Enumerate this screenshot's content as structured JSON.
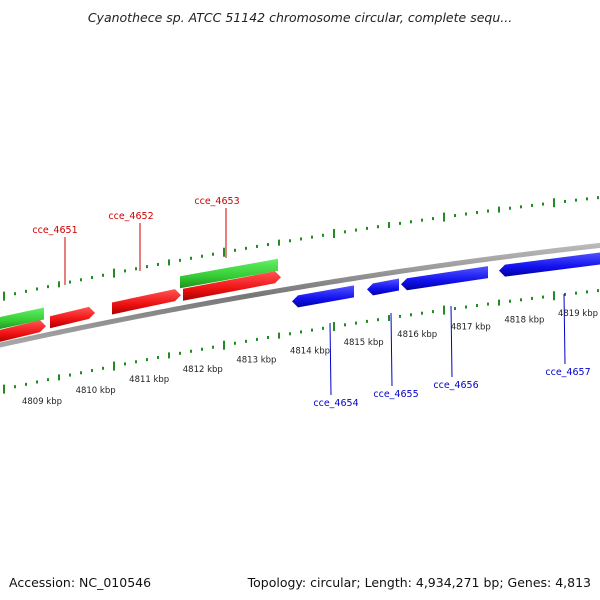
{
  "title": "Cyanothece sp. ATCC 51142 chromosome circular, complete sequ...",
  "footer": {
    "accession": "Accession: NC_010546",
    "stats": "Topology: circular; Length: 4,934,271 bp; Genes: 4,813"
  },
  "colors": {
    "forward_top": "#33cc33",
    "forward_bottom": "#ee1111",
    "reverse": "#1111ee",
    "tick_forward": "#228b22",
    "tick_reverse": "#228b22",
    "backbone": "#888888",
    "label_forward": "#cc0000",
    "label_reverse": "#0000cc"
  },
  "scale": {
    "unit": "kbp",
    "labels": [
      "4809 kbp",
      "4810 kbp",
      "4811 kbp",
      "4812 kbp",
      "4813 kbp",
      "4814 kbp",
      "4815 kbp",
      "4816 kbp",
      "4817 kbp",
      "4818 kbp",
      "4819 kbp"
    ]
  },
  "genes": {
    "forward_labeled": [
      {
        "name": "cce_4651"
      },
      {
        "name": "cce_4652"
      },
      {
        "name": "cce_4653"
      }
    ],
    "reverse_labeled": [
      {
        "name": "cce_4654"
      },
      {
        "name": "cce_4655"
      },
      {
        "name": "cce_4656"
      },
      {
        "name": "cce_4657"
      }
    ]
  }
}
